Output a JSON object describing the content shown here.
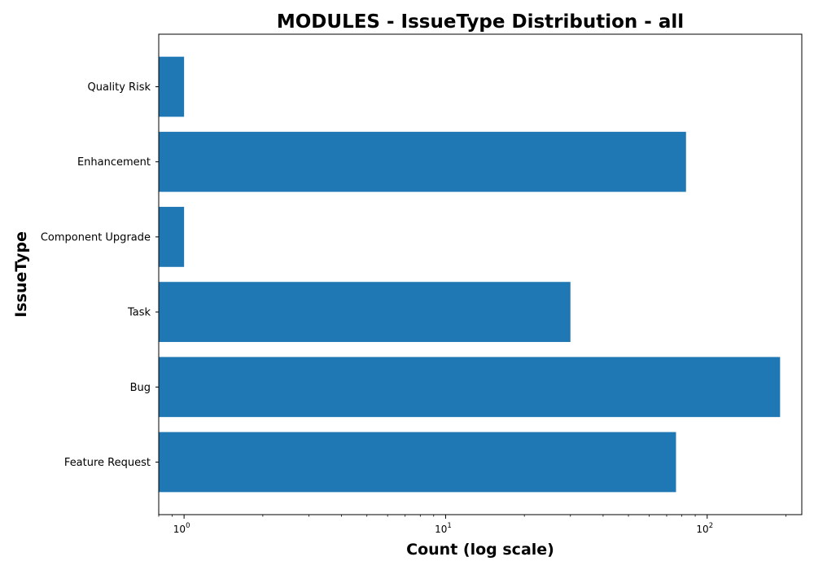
{
  "chart_data": {
    "type": "bar",
    "orientation": "horizontal",
    "title": "MODULES - IssueType Distribution - all",
    "xlabel": "Count (log scale)",
    "ylabel": "IssueType",
    "x_scale": "log",
    "xlim": [
      0.8,
      230
    ],
    "x_ticks": [
      {
        "value": 1,
        "base": "10",
        "exp": "0"
      },
      {
        "value": 10,
        "base": "10",
        "exp": "1"
      },
      {
        "value": 100,
        "base": "10",
        "exp": "2"
      }
    ],
    "categories": [
      "Feature Request",
      "Bug",
      "Task",
      "Component Upgrade",
      "Enhancement",
      "Quality Risk"
    ],
    "values": [
      76,
      190,
      30,
      1,
      83,
      1
    ],
    "bar_color": "#1f77b4",
    "grid": false,
    "legend": "none"
  }
}
